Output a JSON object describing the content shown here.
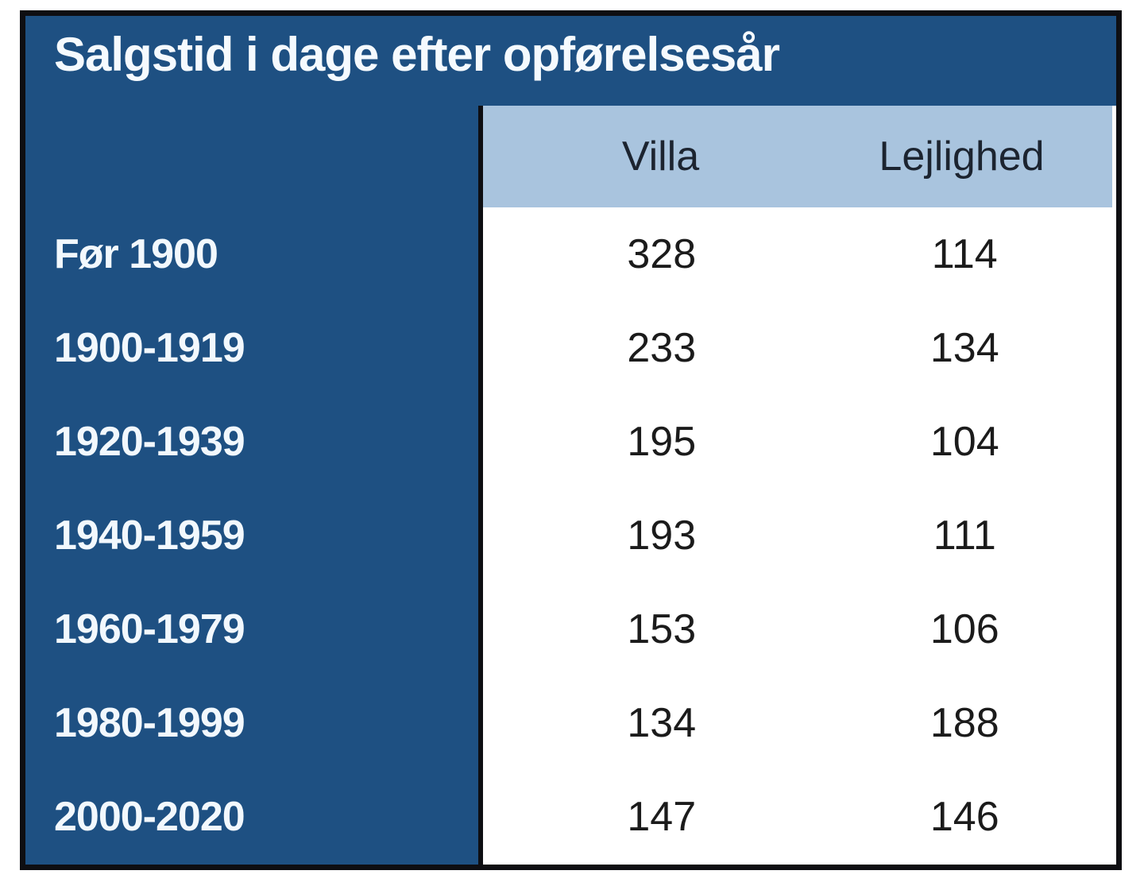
{
  "chart_data": {
    "type": "table",
    "title": "Salgstid i dage efter opførelsesår",
    "categories": [
      "Før 1900",
      "1900-1919",
      "1920-1939",
      "1940-1959",
      "1960-1979",
      "1980-1999",
      "2000-2020"
    ],
    "series": [
      {
        "name": "Villa",
        "values": [
          328,
          233,
          195,
          193,
          153,
          134,
          147
        ]
      },
      {
        "name": "Lejlighed",
        "values": [
          114,
          134,
          104,
          111,
          106,
          188,
          146
        ]
      }
    ],
    "layout_hints": {
      "unit": "dage",
      "row_label_column_on_left": true,
      "header_row_highlighted": true
    }
  },
  "colors": {
    "card_background": "#1E5082",
    "header_band": "#A9C4DE",
    "border": "#0E0E12",
    "title_text": "#F5FAFE",
    "header_text": "#1C2430",
    "value_text": "#1B1B1B",
    "page_background": "#FFFFFF"
  }
}
